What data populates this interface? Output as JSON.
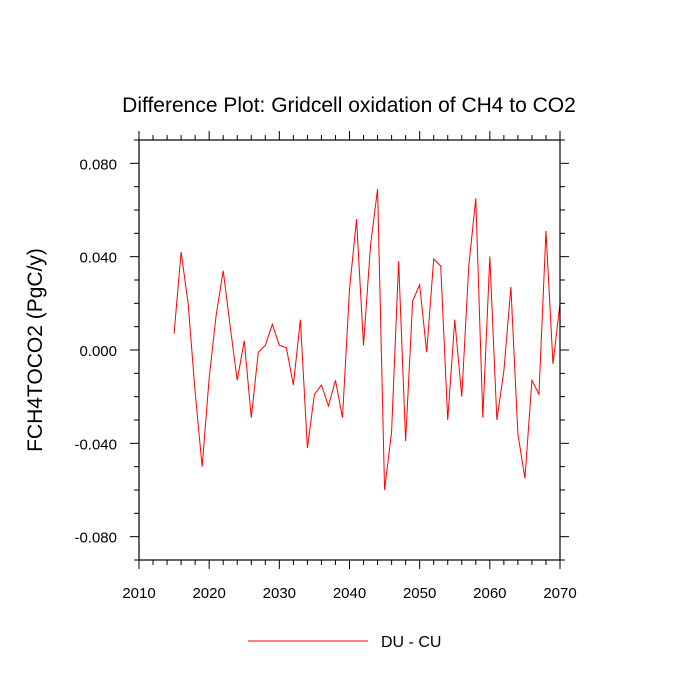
{
  "chart_data": {
    "type": "line",
    "title": "Difference Plot: Gridcell oxidation of CH4 to CO2",
    "xlabel": "",
    "ylabel": "FCH4TOCO2  (PgC/y)",
    "xlim": [
      2010,
      2070
    ],
    "ylim": [
      -0.09,
      0.09
    ],
    "x_ticks": [
      2010,
      2020,
      2030,
      2040,
      2050,
      2060,
      2070
    ],
    "x_tick_labels": [
      "2010",
      "2020",
      "2030",
      "2040",
      "2050",
      "2060",
      "2070"
    ],
    "y_ticks": [
      -0.08,
      -0.04,
      0.0,
      0.04,
      0.08
    ],
    "y_tick_labels": [
      "-0.080",
      "-0.040",
      "0.000",
      "0.040",
      "0.080"
    ],
    "grid": false,
    "legend_position": "bottom",
    "series": [
      {
        "name": "DU - CU",
        "color": "#ff0000",
        "x": [
          2015,
          2016,
          2017,
          2018,
          2019,
          2020,
          2021,
          2022,
          2023,
          2024,
          2025,
          2026,
          2027,
          2028,
          2029,
          2030,
          2031,
          2032,
          2033,
          2034,
          2035,
          2036,
          2037,
          2038,
          2039,
          2040,
          2041,
          2042,
          2043,
          2044,
          2045,
          2046,
          2047,
          2048,
          2049,
          2050,
          2051,
          2052,
          2053,
          2054,
          2055,
          2056,
          2057,
          2058,
          2059,
          2060,
          2061,
          2062,
          2063,
          2064,
          2065,
          2066,
          2067,
          2068,
          2069,
          2070
        ],
        "values": [
          0.007,
          0.042,
          0.02,
          -0.018,
          -0.05,
          -0.012,
          0.015,
          0.034,
          0.01,
          -0.013,
          0.004,
          -0.029,
          -0.001,
          0.002,
          0.011,
          0.002,
          0.001,
          -0.015,
          0.013,
          -0.042,
          -0.019,
          -0.015,
          -0.024,
          -0.013,
          -0.029,
          0.026,
          0.056,
          0.002,
          0.045,
          0.069,
          -0.06,
          -0.035,
          0.038,
          -0.039,
          0.021,
          0.028,
          -0.001,
          0.039,
          0.036,
          -0.03,
          0.013,
          -0.02,
          0.036,
          0.065,
          -0.029,
          0.04,
          -0.03,
          -0.009,
          0.027,
          -0.036,
          -0.055,
          -0.013,
          -0.019,
          0.051,
          -0.006,
          0.02
        ]
      }
    ]
  }
}
